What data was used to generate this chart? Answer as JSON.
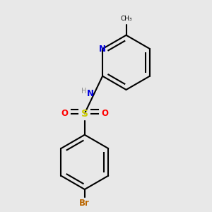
{
  "bg_color": "#e8e8e8",
  "atom_colors": {
    "N_pyridine": "#0000dd",
    "N_amine": "#0000dd",
    "S": "#cccc00",
    "O": "#ff0000",
    "Br": "#bb6600",
    "H": "#888888",
    "C": "#000000"
  },
  "bond_color": "#000000",
  "lw": 1.5,
  "dpi": 100,
  "figsize": [
    3.0,
    3.0
  ],
  "xlim": [
    0.15,
    0.85
  ],
  "ylim": [
    0.08,
    0.95
  ]
}
